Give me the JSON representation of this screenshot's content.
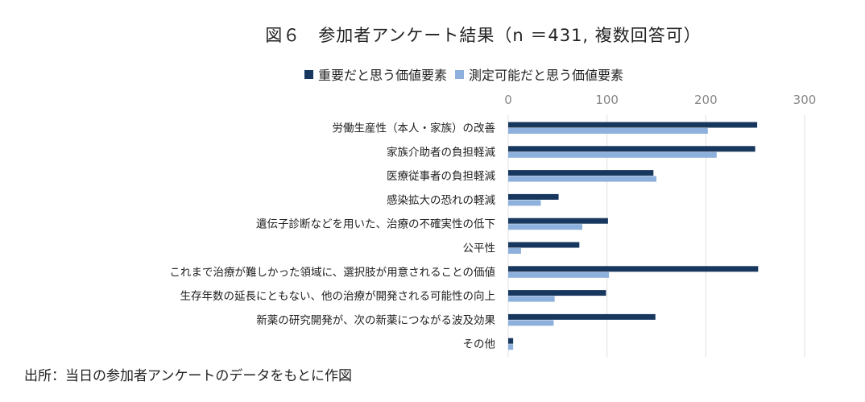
{
  "chart_data": {
    "type": "bar",
    "orientation": "horizontal",
    "title": "図６　参加者アンケート結果（n ＝431, 複数回答可）",
    "categories": [
      "労働生産性（本人・家族）の改善",
      "家族介助者の負担軽減",
      "医療従事者の負担軽減",
      "感染拡大の恐れの軽減",
      "遺伝子診断などを用いた、治療の不確実性の低下",
      "公平性",
      "これまで治療が難しかった領域に、選択肢が用意されることの価値",
      "生存年数の延長にともない、他の治療が開発される可能性の向上",
      "新薬の研究開発が、次の新薬につながる波及効果",
      "その他"
    ],
    "series": [
      {
        "name": "重要だと思う価値要素",
        "color": "#17375e",
        "values": [
          252,
          250,
          147,
          51,
          101,
          72,
          253,
          99,
          149,
          5
        ]
      },
      {
        "name": "測定可能だと思う価値要素",
        "color": "#8eb0dc",
        "values": [
          202,
          211,
          150,
          33,
          75,
          13,
          102,
          47,
          46,
          5
        ]
      }
    ],
    "xlim": [
      0,
      300
    ],
    "xticks": [
      0,
      100,
      200,
      300
    ],
    "xtick_labels": [
      "0",
      "100",
      "200",
      "300"
    ],
    "xaxis_position": "top",
    "grid": true,
    "legend_position": "top"
  },
  "footer": "出所：当日の参加者アンケートのデータをもとに作図"
}
